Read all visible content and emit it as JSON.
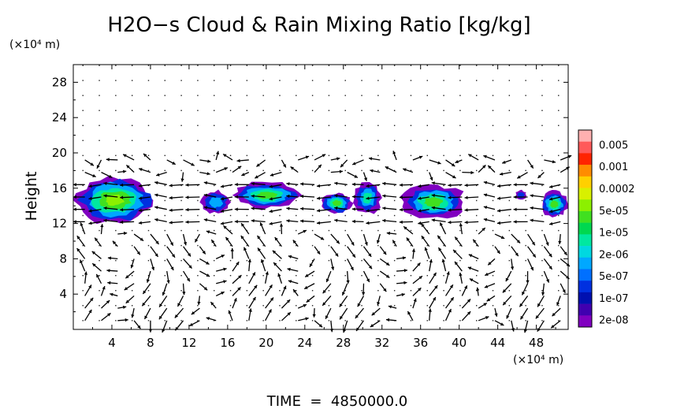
{
  "chart_data": {
    "type": "heatmap",
    "title": "H2O−s Cloud & Rain Mixing Ratio [kg/kg]",
    "ylabel": "Height",
    "xunit": "(×10⁴ m)",
    "yunit": "(×10⁴ m)",
    "footer": "TIME  =  4850000.0",
    "xlim": [
      0,
      51.3
    ],
    "ylim": [
      0,
      30
    ],
    "xticks": [
      4,
      8,
      12,
      16,
      20,
      24,
      28,
      32,
      36,
      40,
      44,
      48
    ],
    "yticks": [
      4,
      8,
      12,
      16,
      20,
      24,
      28
    ],
    "colorbar": {
      "labels": [
        "0.005",
        "0.001",
        "0.0002",
        "5e-05",
        "1e-05",
        "2e-06",
        "5e-07",
        "1e-07",
        "2e-08"
      ],
      "colors": [
        "#ffb0b0",
        "#ff5a5a",
        "#ff2400",
        "#ff8c00",
        "#ffd000",
        "#d8f000",
        "#8cf000",
        "#40e020",
        "#00d850",
        "#00e8a0",
        "#00d8e0",
        "#00a8ff",
        "#0070ff",
        "#0030e0",
        "#0010b0",
        "#4000b0",
        "#8000c0"
      ]
    },
    "clouds": [
      {
        "x": [
          0,
          8.6
        ],
        "y": [
          11.8,
          17.5
        ],
        "peak": "5e-05"
      },
      {
        "x": [
          13.2,
          16.4
        ],
        "y": [
          13,
          15.8
        ],
        "peak": "5e-07"
      },
      {
        "x": [
          16.4,
          23.8
        ],
        "y": [
          13.6,
          16.8
        ],
        "peak": "1e-05"
      },
      {
        "x": [
          25.6,
          29
        ],
        "y": [
          13,
          15.6
        ],
        "peak": "1e-05"
      },
      {
        "x": [
          29,
          32
        ],
        "y": [
          13,
          16.8
        ],
        "peak": "2e-06"
      },
      {
        "x": [
          33.8,
          40.8
        ],
        "y": [
          12.4,
          16.5
        ],
        "peak": "1e-05"
      },
      {
        "x": [
          45.8,
          47
        ],
        "y": [
          14.6,
          15.8
        ],
        "peak": "1e-07"
      },
      {
        "x": [
          48.4,
          51.3
        ],
        "y": [
          12.6,
          15.8
        ],
        "peak": "1e-05"
      }
    ]
  }
}
